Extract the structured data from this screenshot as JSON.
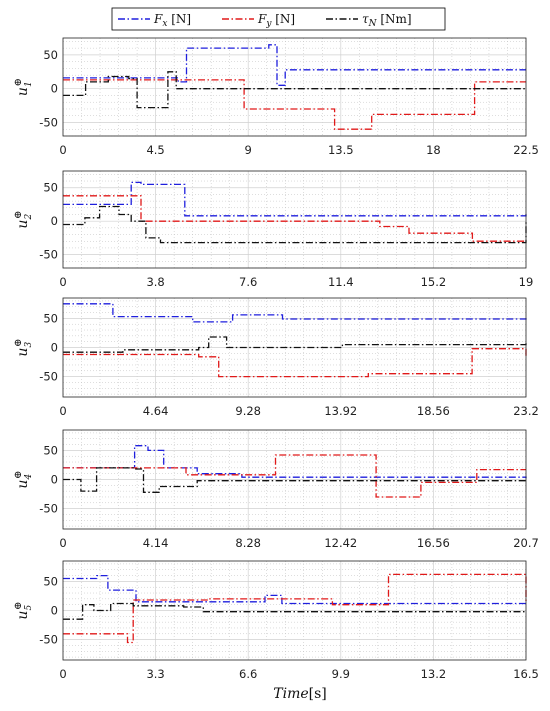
{
  "legend": {
    "fx": {
      "sym": "F",
      "sub": "x",
      "unit": " [N]"
    },
    "fy": {
      "sym": "F",
      "sub": "y",
      "unit": " [N]"
    },
    "tau": {
      "sym": "τ",
      "sub": "N",
      "unit": " [Nm]"
    }
  },
  "colors": {
    "fx": "#1f1fdd",
    "fy": "#e01919",
    "tau": "#111111",
    "grid": "#bdbdbd",
    "band": "#fadde6"
  },
  "xlabel": {
    "italic": "Time",
    "unit": "[s]"
  },
  "chart_data": [
    {
      "type": "line",
      "ylabel": "u1⊕",
      "sub": "1",
      "xlim": [
        0,
        22.5
      ],
      "ylim": [
        -70,
        75
      ],
      "xticks": [
        "0",
        "4.5",
        "9",
        "13.5",
        "18",
        "22.5"
      ],
      "yticks": [
        50,
        0,
        -50
      ],
      "series": [
        {
          "name": "Fx [N]",
          "key": "fx",
          "x": [
            0,
            4.5,
            5.6,
            6,
            10,
            10.4,
            10.8,
            22.5
          ],
          "y": [
            16,
            16,
            10,
            60,
            65,
            5,
            28,
            28
          ]
        },
        {
          "name": "Fy [N]",
          "key": "fy",
          "x": [
            0,
            5.8,
            8.8,
            13.2,
            15,
            20,
            22.5
          ],
          "y": [
            13,
            13,
            -30,
            -60,
            -38,
            10,
            10
          ]
        },
        {
          "name": "τN [Nm]",
          "key": "tau",
          "x": [
            0,
            1.1,
            2.2,
            3.2,
            3.6,
            4.8,
            5.1,
            5.5,
            22.5
          ],
          "y": [
            -10,
            10,
            18,
            15,
            -28,
            -28,
            25,
            0,
            0
          ]
        }
      ]
    },
    {
      "type": "line",
      "ylabel": "u2⊕",
      "sub": "2",
      "xlim": [
        0,
        19
      ],
      "ylim": [
        -70,
        75
      ],
      "xticks": [
        "0",
        "3.8",
        "7.6",
        "11.4",
        "15.2",
        "19"
      ],
      "yticks": [
        50,
        0,
        -50
      ],
      "series": [
        {
          "name": "Fx [N]",
          "key": "fx",
          "x": [
            0,
            2,
            2.8,
            3.2,
            5,
            19
          ],
          "y": [
            25,
            25,
            58,
            55,
            8,
            12
          ]
        },
        {
          "name": "Fy [N]",
          "key": "fy",
          "x": [
            0,
            1.5,
            3.2,
            7.8,
            13,
            14.2,
            16.8,
            19
          ],
          "y": [
            38,
            38,
            0,
            0,
            -8,
            -18,
            -30,
            -30
          ]
        },
        {
          "name": "τN [Nm]",
          "key": "tau",
          "x": [
            0,
            0.9,
            1.5,
            2.3,
            2.8,
            3.4,
            4,
            19
          ],
          "y": [
            -5,
            5,
            22,
            10,
            0,
            -25,
            -32,
            0
          ]
        }
      ]
    },
    {
      "type": "line",
      "ylabel": "u3⊕",
      "sub": "3",
      "xlim": [
        0,
        23.2
      ],
      "ylim": [
        -85,
        85
      ],
      "xticks": [
        "0",
        "4.64",
        "9.28",
        "13.92",
        "18.56",
        "23.2"
      ],
      "yticks": [
        50,
        0,
        -50
      ],
      "series": [
        {
          "name": "Fx [N]",
          "key": "fx",
          "x": [
            0,
            2,
            2.5,
            4.8,
            6.5,
            8.5,
            11,
            23.2
          ],
          "y": [
            75,
            75,
            53,
            53,
            44,
            56,
            49,
            52
          ]
        },
        {
          "name": "Fy [N]",
          "key": "fy",
          "x": [
            0,
            4,
            6.8,
            7.8,
            15.3,
            20.5,
            23.2
          ],
          "y": [
            -12,
            -12,
            -16,
            -50,
            -45,
            -2,
            -16
          ]
        },
        {
          "name": "τN [Nm]",
          "key": "tau",
          "x": [
            0,
            3,
            6.8,
            7.3,
            8.2,
            14,
            23.2
          ],
          "y": [
            -8,
            -4,
            0,
            18,
            0,
            5,
            8
          ]
        }
      ]
    },
    {
      "type": "line",
      "ylabel": "u4⊕",
      "sub": "4",
      "xlim": [
        0,
        20.7
      ],
      "ylim": [
        -85,
        85
      ],
      "xticks": [
        "0",
        "4.14",
        "8.28",
        "12.42",
        "16.56",
        "20.7"
      ],
      "yticks": [
        50,
        0,
        -50
      ],
      "series": [
        {
          "name": "Fx [N]",
          "key": "fx",
          "x": [
            0,
            1.6,
            3.2,
            3.8,
            4.5,
            6,
            8,
            20.7
          ],
          "y": [
            20,
            20,
            58,
            50,
            20,
            10,
            4,
            2
          ]
        },
        {
          "name": "Fy [N]",
          "key": "fy",
          "x": [
            0,
            5.5,
            9.5,
            14,
            16,
            18.5,
            20.7
          ],
          "y": [
            20,
            8,
            42,
            -30,
            -5,
            17,
            17
          ]
        },
        {
          "name": "τN [Nm]",
          "key": "tau",
          "x": [
            0,
            0.8,
            1.5,
            3.2,
            3.6,
            4.3,
            6,
            20.7
          ],
          "y": [
            0,
            -20,
            20,
            18,
            -22,
            -12,
            -2,
            0
          ]
        }
      ]
    },
    {
      "type": "line",
      "ylabel": "u5⊕",
      "sub": "5",
      "xlim": [
        0,
        16.5
      ],
      "ylim": [
        -85,
        85
      ],
      "xticks": [
        "0",
        "3.3",
        "6.6",
        "9.9",
        "13.2",
        "16.5"
      ],
      "yticks": [
        50,
        0,
        -50
      ],
      "series": [
        {
          "name": "Fx [N]",
          "key": "fx",
          "x": [
            0,
            1.2,
            1.6,
            2.6,
            4.1,
            7.2,
            7.8,
            16.5
          ],
          "y": [
            55,
            60,
            35,
            15,
            15,
            26,
            12,
            10
          ]
        },
        {
          "name": "Fy [N]",
          "key": "fy",
          "x": [
            0,
            1.5,
            2.3,
            2.5,
            5.2,
            9.6,
            11.6,
            16.5
          ],
          "y": [
            -40,
            -40,
            -55,
            18,
            20,
            10,
            62,
            12
          ]
        },
        {
          "name": "τN [Nm]",
          "key": "tau",
          "x": [
            0,
            0.7,
            1.1,
            1.7,
            2.5,
            4.3,
            5,
            16.5
          ],
          "y": [
            -15,
            10,
            0,
            12,
            8,
            6,
            -2,
            -2
          ]
        }
      ]
    }
  ]
}
